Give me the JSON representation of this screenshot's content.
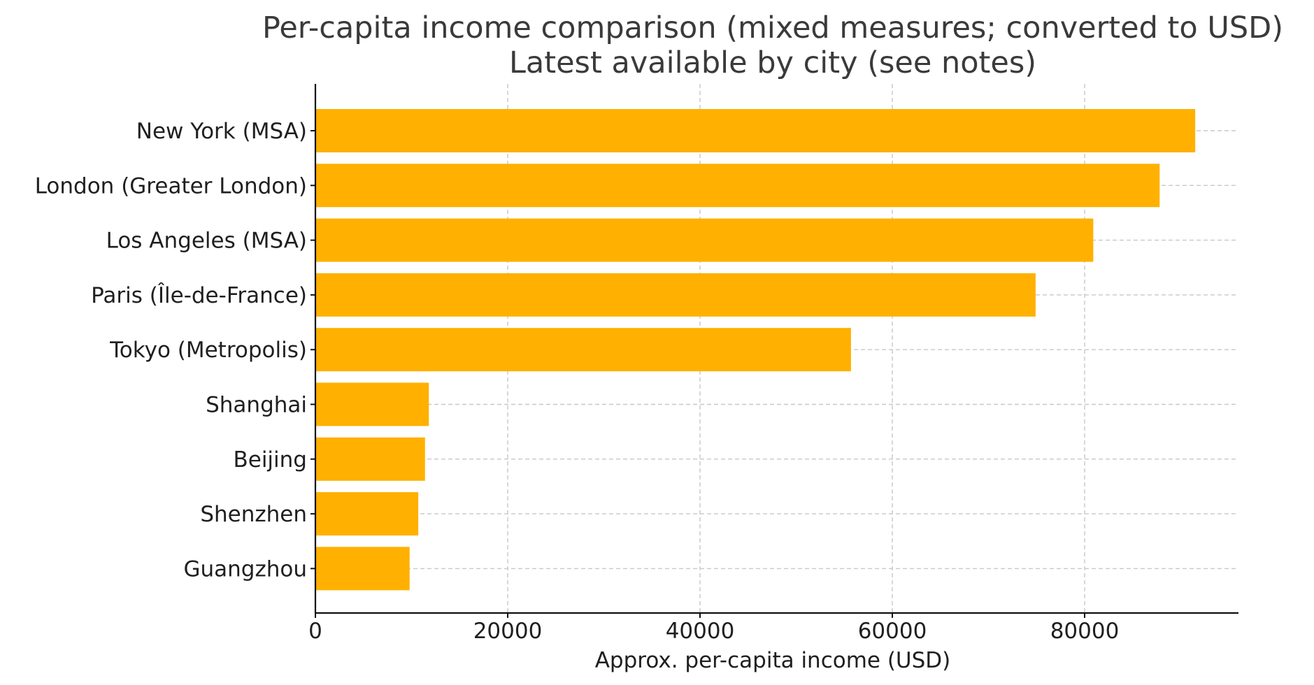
{
  "chart_data": {
    "type": "bar",
    "orientation": "horizontal",
    "title": "Per-capita income comparison (mixed measures; converted to USD)",
    "subtitle": "Latest available by city (see notes)",
    "xlabel": "Approx. per-capita income (USD)",
    "ylabel": "",
    "categories": [
      "New York (MSA)",
      "London (Greater London)",
      "Los Angeles (MSA)",
      "Paris (Île-de-France)",
      "Tokyo (Metropolis)",
      "Shanghai",
      "Beijing",
      "Shenzhen",
      "Guangzhou"
    ],
    "values": [
      91500,
      87800,
      80900,
      74900,
      55700,
      11800,
      11400,
      10700,
      9800
    ],
    "xlim": [
      0,
      96000
    ],
    "xticks": [
      0,
      20000,
      40000,
      60000,
      80000
    ],
    "xtick_labels": [
      "0",
      "20000",
      "40000",
      "60000",
      "80000"
    ],
    "grid": true,
    "bar_color": "#FFB000"
  }
}
